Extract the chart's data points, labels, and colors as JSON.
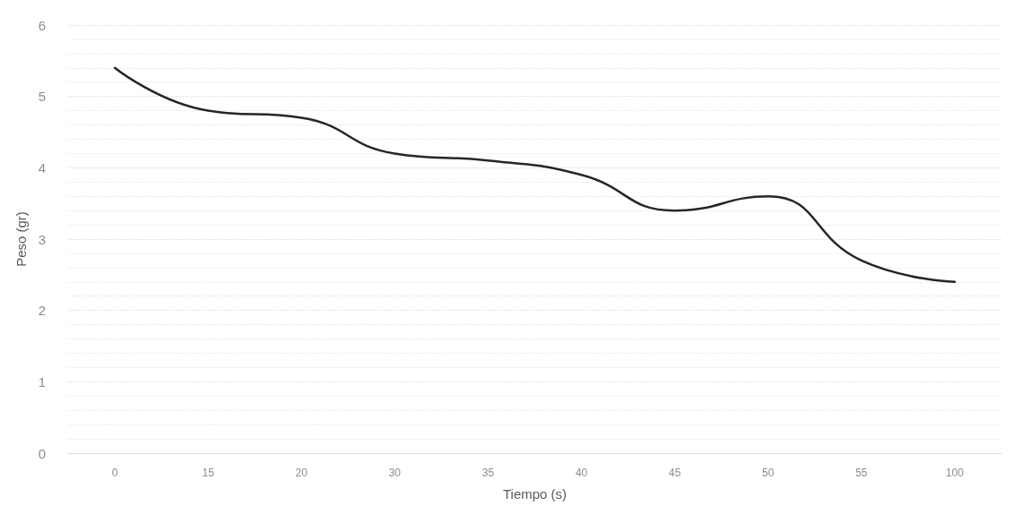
{
  "chart_data": {
    "type": "line",
    "xlabel": "Tiempo (s)",
    "ylabel": "Peso (gr)",
    "categories": [
      "0",
      "15",
      "20",
      "30",
      "35",
      "40",
      "45",
      "50",
      "55",
      "100"
    ],
    "series": [
      {
        "color": "#262626",
        "values": [
          5.4,
          4.8,
          4.7,
          4.2,
          4.1,
          3.9,
          3.4,
          3.6,
          2.7,
          2.4
        ]
      }
    ],
    "ylim": [
      0,
      6
    ],
    "yticks": [
      0,
      1,
      2,
      3,
      4,
      5,
      6
    ],
    "grid": "y",
    "marker": "none",
    "line_style": "solid"
  }
}
